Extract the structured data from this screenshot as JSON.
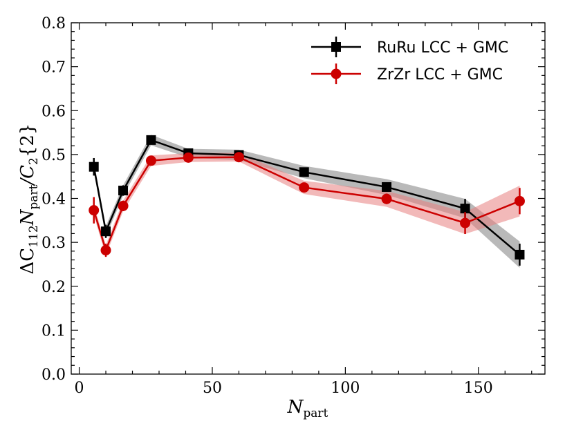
{
  "chart_data": {
    "type": "line",
    "title": "",
    "xlabel": {
      "main": "N",
      "sub": "part"
    },
    "ylabel": {
      "prefix": "ΔC",
      "sub1": "112",
      "mid": "N",
      "sub2": "part",
      "mid2": "/C",
      "sub3": "2",
      "suffix": "{2}"
    },
    "xlim": [
      -3,
      175
    ],
    "ylim": [
      0.0,
      0.8
    ],
    "xticks": [
      0,
      50,
      100,
      150
    ],
    "yticks": [
      0.0,
      0.1,
      0.2,
      0.3,
      0.4,
      0.5,
      0.6,
      0.7,
      0.8
    ],
    "xtick_labels": [
      "0",
      "50",
      "100",
      "150"
    ],
    "ytick_labels": [
      "0.0",
      "0.1",
      "0.2",
      "0.3",
      "0.4",
      "0.5",
      "0.6",
      "0.7",
      "0.8"
    ],
    "legend_position": "top-right",
    "series": [
      {
        "name": "RuRu LCC + GMC",
        "color": "#000000",
        "band_color": "#808080",
        "marker": "square",
        "x": [
          5.5,
          10,
          16.5,
          27,
          41,
          60,
          84.5,
          115.5,
          145,
          165.5
        ],
        "y": [
          0.472,
          0.325,
          0.418,
          0.533,
          0.503,
          0.499,
          0.46,
          0.426,
          0.377,
          0.272
        ],
        "err": [
          0.02,
          0.015,
          0.012,
          0.01,
          0.008,
          0.008,
          0.008,
          0.01,
          0.022,
          0.025
        ],
        "band": [
          0.012,
          0.012,
          0.012,
          0.012,
          0.01,
          0.012,
          0.014,
          0.018,
          0.022,
          0.03
        ]
      },
      {
        "name": "ZrZr LCC + GMC",
        "color": "#cc0000",
        "band_color": "#e88080",
        "marker": "circle",
        "x": [
          5.5,
          10,
          16.5,
          27,
          41,
          60,
          84.5,
          115.5,
          145,
          165.5
        ],
        "y": [
          0.373,
          0.282,
          0.383,
          0.486,
          0.493,
          0.494,
          0.425,
          0.399,
          0.344,
          0.394
        ],
        "err": [
          0.03,
          0.015,
          0.012,
          0.01,
          0.008,
          0.008,
          0.008,
          0.012,
          0.025,
          0.03
        ],
        "band": [
          0.012,
          0.012,
          0.012,
          0.012,
          0.01,
          0.01,
          0.015,
          0.018,
          0.025,
          0.035
        ]
      }
    ]
  }
}
